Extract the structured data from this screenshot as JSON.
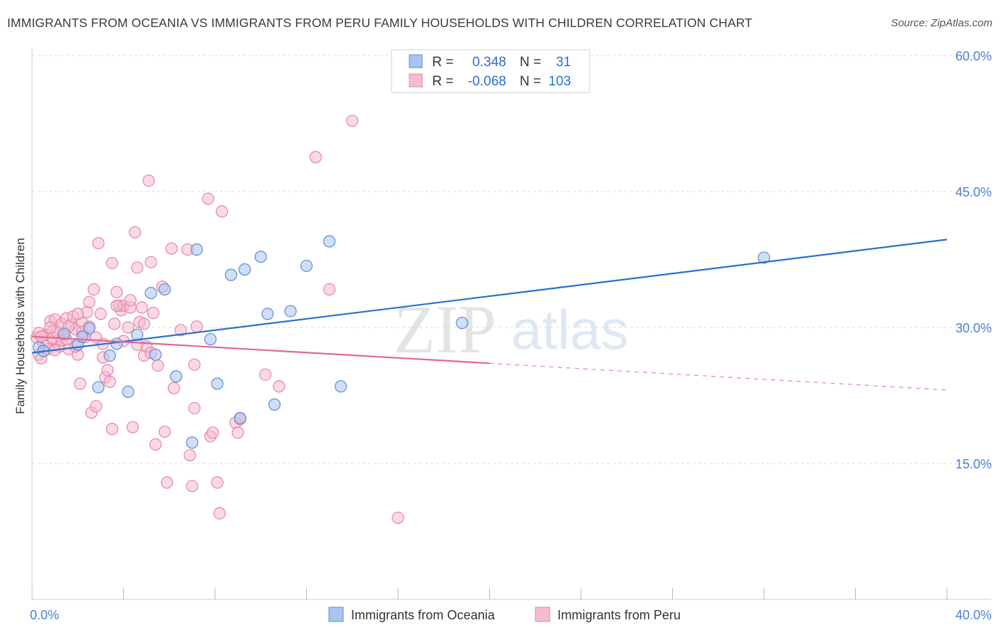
{
  "title": "IMMIGRANTS FROM OCEANIA VS IMMIGRANTS FROM PERU FAMILY HOUSEHOLDS WITH CHILDREN CORRELATION CHART",
  "source": "Source: ZipAtlas.com",
  "watermark": {
    "zip": "ZIP",
    "atlas": "atlas"
  },
  "colors": {
    "oceania_fill": "#a9c4ee",
    "oceania_stroke": "#5a8ed8",
    "oceania_line": "#2b6fd0",
    "peru_fill": "#f6bcd0",
    "peru_stroke": "#e884a8",
    "peru_line": "#e0679a",
    "grid": "#dddddd",
    "tick_label": "#4a7fd4"
  },
  "legend": {
    "r_label": "R =",
    "n_label": "N =",
    "rows": [
      {
        "r": "0.348",
        "n": "31"
      },
      {
        "r": "-0.068",
        "n": "103"
      }
    ]
  },
  "chart_data": {
    "type": "scatter",
    "title": "IMMIGRANTS FROM OCEANIA VS IMMIGRANTS FROM PERU FAMILY HOUSEHOLDS WITH CHILDREN CORRELATION CHART",
    "xlabel": "",
    "ylabel": "Family Households with Children",
    "xlim": [
      0,
      40
    ],
    "ylim": [
      0,
      60
    ],
    "x_tick_labels": [
      {
        "value": 0,
        "label": "0.0%"
      },
      {
        "value": 40,
        "label": "40.0%"
      }
    ],
    "y_tick_labels": [
      {
        "value": 15,
        "label": "15.0%"
      },
      {
        "value": 30,
        "label": "30.0%"
      },
      {
        "value": 45,
        "label": "45.0%"
      },
      {
        "value": 60,
        "label": "60.0%"
      }
    ],
    "grid": true,
    "legend_position": "top-center",
    "series": [
      {
        "name": "Immigrants from Oceania",
        "color": "#a9c4ee",
        "trend": {
          "x": [
            0,
            40
          ],
          "y": [
            27.2,
            39.7
          ],
          "dashed_from": null
        },
        "points": [
          [
            0.3,
            27.8
          ],
          [
            0.5,
            27.4
          ],
          [
            1.4,
            29.3
          ],
          [
            2.0,
            28.1
          ],
          [
            2.5,
            29.9
          ],
          [
            2.9,
            23.4
          ],
          [
            3.4,
            26.9
          ],
          [
            3.7,
            28.2
          ],
          [
            4.2,
            22.9
          ],
          [
            4.6,
            29.2
          ],
          [
            5.2,
            33.8
          ],
          [
            5.4,
            27.0
          ],
          [
            5.8,
            34.2
          ],
          [
            6.3,
            24.6
          ],
          [
            7.0,
            17.3
          ],
          [
            7.2,
            38.6
          ],
          [
            7.8,
            28.7
          ],
          [
            8.1,
            23.8
          ],
          [
            8.7,
            35.8
          ],
          [
            9.1,
            20.0
          ],
          [
            9.3,
            36.4
          ],
          [
            10.0,
            37.8
          ],
          [
            10.3,
            31.5
          ],
          [
            10.6,
            21.5
          ],
          [
            11.3,
            31.8
          ],
          [
            12.0,
            36.8
          ],
          [
            13.0,
            39.5
          ],
          [
            13.5,
            23.5
          ],
          [
            18.8,
            30.5
          ],
          [
            32.0,
            37.7
          ],
          [
            2.2,
            29.0
          ]
        ]
      },
      {
        "name": "Immigrants from Peru",
        "color": "#f6bcd0",
        "trend": {
          "x": [
            0,
            40
          ],
          "y": [
            29.0,
            23.1
          ],
          "dashed_from": 20
        },
        "points": [
          [
            0.2,
            28.9
          ],
          [
            0.3,
            27.0
          ],
          [
            0.4,
            26.6
          ],
          [
            0.5,
            28.3
          ],
          [
            0.6,
            29.2
          ],
          [
            0.7,
            27.6
          ],
          [
            0.8,
            30.7
          ],
          [
            0.9,
            29.6
          ],
          [
            1.0,
            30.9
          ],
          [
            1.1,
            28.5
          ],
          [
            1.2,
            27.9
          ],
          [
            1.3,
            30.4
          ],
          [
            1.4,
            29.1
          ],
          [
            1.5,
            31.0
          ],
          [
            1.6,
            27.6
          ],
          [
            1.7,
            30.3
          ],
          [
            1.8,
            31.2
          ],
          [
            1.9,
            29.8
          ],
          [
            2.0,
            27.0
          ],
          [
            2.1,
            23.8
          ],
          [
            2.2,
            30.5
          ],
          [
            2.3,
            28.9
          ],
          [
            2.4,
            31.7
          ],
          [
            2.5,
            32.8
          ],
          [
            2.6,
            20.6
          ],
          [
            2.7,
            34.2
          ],
          [
            2.8,
            21.3
          ],
          [
            2.9,
            39.3
          ],
          [
            3.0,
            31.5
          ],
          [
            3.1,
            28.2
          ],
          [
            3.2,
            24.5
          ],
          [
            3.3,
            25.3
          ],
          [
            3.5,
            37.1
          ],
          [
            3.5,
            18.8
          ],
          [
            3.6,
            30.4
          ],
          [
            3.7,
            33.9
          ],
          [
            3.8,
            32.4
          ],
          [
            3.9,
            31.9
          ],
          [
            4.0,
            32.4
          ],
          [
            4.2,
            30.0
          ],
          [
            4.3,
            32.2
          ],
          [
            4.4,
            19.0
          ],
          [
            4.5,
            40.5
          ],
          [
            4.6,
            36.6
          ],
          [
            4.7,
            30.6
          ],
          [
            4.8,
            32.2
          ],
          [
            4.9,
            26.9
          ],
          [
            5.0,
            27.9
          ],
          [
            5.1,
            46.2
          ],
          [
            5.2,
            37.2
          ],
          [
            5.3,
            31.6
          ],
          [
            5.4,
            17.1
          ],
          [
            5.5,
            25.8
          ],
          [
            5.7,
            34.5
          ],
          [
            5.8,
            18.5
          ],
          [
            5.9,
            12.9
          ],
          [
            6.1,
            38.7
          ],
          [
            6.2,
            23.3
          ],
          [
            6.5,
            29.7
          ],
          [
            6.8,
            38.6
          ],
          [
            6.9,
            15.9
          ],
          [
            7.0,
            12.5
          ],
          [
            7.1,
            21.1
          ],
          [
            7.1,
            25.9
          ],
          [
            7.2,
            30.1
          ],
          [
            7.7,
            44.2
          ],
          [
            7.8,
            18.0
          ],
          [
            7.9,
            18.4
          ],
          [
            8.1,
            12.9
          ],
          [
            8.2,
            9.5
          ],
          [
            8.3,
            42.8
          ],
          [
            8.9,
            19.5
          ],
          [
            9.0,
            18.4
          ],
          [
            9.1,
            19.9
          ],
          [
            10.2,
            24.8
          ],
          [
            10.8,
            23.5
          ],
          [
            12.4,
            48.8
          ],
          [
            13.0,
            34.2
          ],
          [
            14.0,
            52.8
          ],
          [
            16.0,
            9.0
          ],
          [
            0.3,
            29.4
          ],
          [
            0.6,
            28.0
          ],
          [
            0.9,
            28.8
          ],
          [
            1.1,
            29.5
          ],
          [
            1.3,
            28.6
          ],
          [
            1.6,
            30.1
          ],
          [
            1.9,
            27.9
          ],
          [
            2.2,
            29.5
          ],
          [
            2.5,
            30.1
          ],
          [
            2.8,
            28.9
          ],
          [
            3.1,
            26.7
          ],
          [
            3.4,
            24.0
          ],
          [
            3.7,
            32.4
          ],
          [
            4.0,
            28.5
          ],
          [
            4.3,
            33.0
          ],
          [
            4.6,
            28.1
          ],
          [
            4.9,
            30.4
          ],
          [
            5.2,
            27.2
          ],
          [
            0.4,
            29.0
          ],
          [
            0.8,
            30.0
          ],
          [
            1.0,
            27.5
          ],
          [
            1.5,
            28.7
          ],
          [
            2.0,
            31.5
          ]
        ]
      }
    ]
  },
  "bottom_legend": [
    {
      "label": "Immigrants from Oceania"
    },
    {
      "label": "Immigrants from Peru"
    }
  ]
}
